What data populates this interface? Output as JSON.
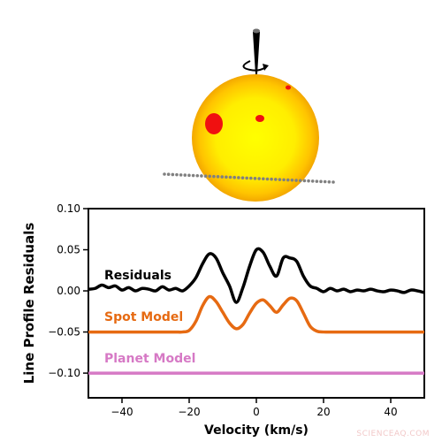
{
  "chart_data": {
    "type": "line",
    "xlabel": "Velocity (km/s)",
    "ylabel": "Line Profile Residuals",
    "xlim": [
      -50,
      50
    ],
    "ylim": [
      -0.13,
      0.1
    ],
    "xticks": [
      -40,
      -20,
      0,
      20,
      40
    ],
    "xtick_labels": [
      "−40",
      "−20",
      "0",
      "20",
      "40"
    ],
    "yticks": [
      0.1,
      0.05,
      0.0,
      -0.05,
      -0.1
    ],
    "ytick_labels": [
      "0.10",
      "0.05",
      "0.00",
      "−0.05",
      "−0.10"
    ],
    "grid": false,
    "series": [
      {
        "name": "Residuals",
        "color": "#000000",
        "x": [
          -50,
          -48,
          -46,
          -44,
          -42,
          -40,
          -38,
          -36,
          -34,
          -32,
          -30,
          -28,
          -26,
          -24,
          -22,
          -20,
          -18,
          -16,
          -14,
          -12,
          -10,
          -8,
          -6,
          -4,
          -2,
          0,
          2,
          4,
          6,
          8,
          10,
          12,
          14,
          16,
          18,
          20,
          22,
          24,
          26,
          28,
          30,
          32,
          34,
          36,
          38,
          40,
          42,
          44,
          46,
          48,
          50
        ],
        "y": [
          0.002,
          0.003,
          0.007,
          0.004,
          0.006,
          0.001,
          0.004,
          0.0,
          0.003,
          0.002,
          0.0,
          0.005,
          0.001,
          0.003,
          0.0,
          0.006,
          0.016,
          0.033,
          0.045,
          0.04,
          0.022,
          0.006,
          -0.014,
          0.004,
          0.03,
          0.05,
          0.047,
          0.03,
          0.018,
          0.04,
          0.04,
          0.036,
          0.018,
          0.006,
          0.003,
          -0.001,
          0.003,
          0.0,
          0.002,
          -0.001,
          0.001,
          0.0,
          0.002,
          0.0,
          -0.001,
          0.001,
          0.0,
          -0.002,
          0.001,
          0.0,
          -0.002
        ]
      },
      {
        "name": "Spot Model",
        "color": "#e66a12",
        "x": [
          -50,
          -48,
          -46,
          -44,
          -42,
          -40,
          -38,
          -36,
          -34,
          -32,
          -30,
          -28,
          -26,
          -24,
          -22,
          -20,
          -18,
          -16,
          -14,
          -12,
          -10,
          -8,
          -6,
          -4,
          -2,
          0,
          2,
          4,
          6,
          8,
          10,
          12,
          14,
          16,
          18,
          20,
          22,
          24,
          26,
          28,
          30,
          32,
          34,
          36,
          38,
          40,
          42,
          44,
          46,
          48,
          50
        ],
        "y": [
          -0.05,
          -0.05,
          -0.05,
          -0.05,
          -0.05,
          -0.05,
          -0.05,
          -0.05,
          -0.05,
          -0.05,
          -0.05,
          -0.05,
          -0.05,
          -0.05,
          -0.05,
          -0.048,
          -0.037,
          -0.018,
          -0.007,
          -0.013,
          -0.026,
          -0.039,
          -0.046,
          -0.041,
          -0.027,
          -0.015,
          -0.011,
          -0.018,
          -0.026,
          -0.017,
          -0.009,
          -0.012,
          -0.027,
          -0.043,
          -0.049,
          -0.05,
          -0.05,
          -0.05,
          -0.05,
          -0.05,
          -0.05,
          -0.05,
          -0.05,
          -0.05,
          -0.05,
          -0.05,
          -0.05,
          -0.05,
          -0.05,
          -0.05,
          -0.05
        ]
      },
      {
        "name": "Planet Model",
        "color": "#d679c5",
        "x": [
          -50,
          50
        ],
        "y": [
          -0.1,
          -0.1
        ]
      }
    ]
  },
  "illustration": {
    "star_color": "#ffec00",
    "spot_color": "#f01010",
    "transit_path_color": "#808080",
    "rotation_axis_color": "#000000"
  },
  "watermark": "SCIENCEAQ.COM"
}
